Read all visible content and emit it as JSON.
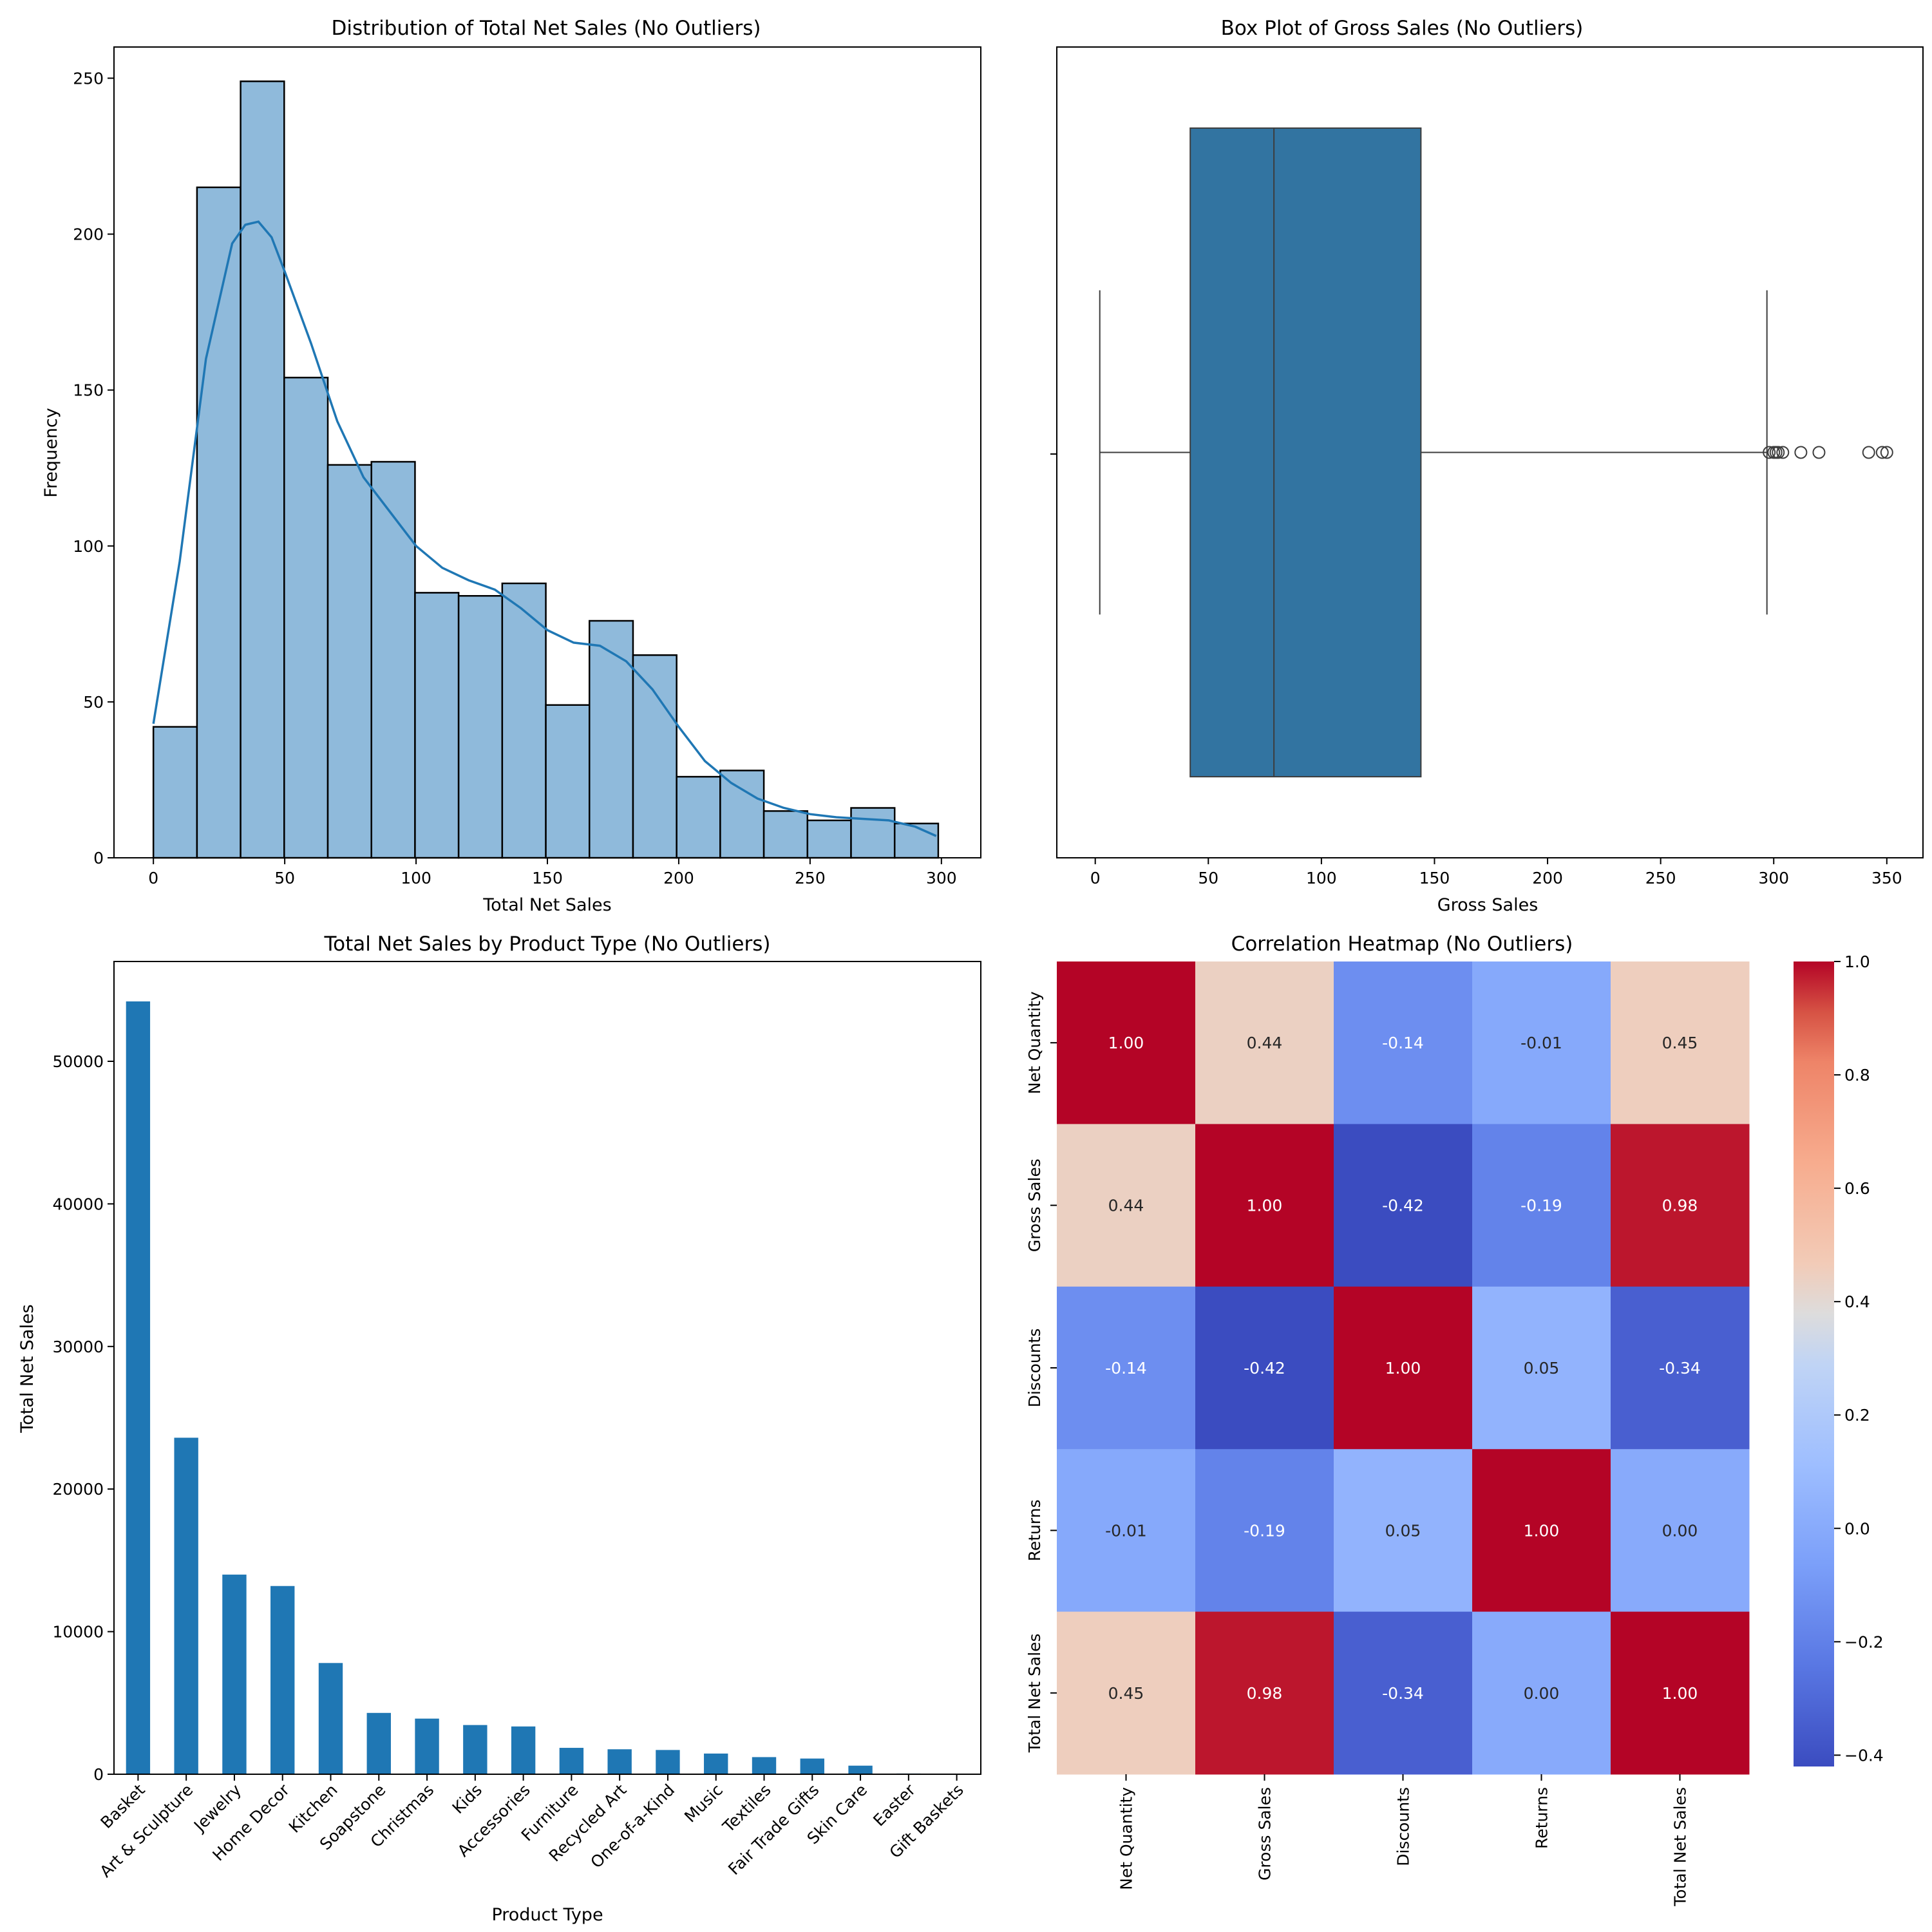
{
  "chart_data": [
    {
      "type": "bar",
      "id": "hist",
      "title": "Distribution of Total Net Sales (No Outliers)",
      "xlabel": "Total Net Sales",
      "ylabel": "Frequency",
      "xlim": [
        -15,
        315
      ],
      "ylim": [
        0,
        260
      ],
      "xticks": [
        0,
        50,
        100,
        150,
        200,
        250,
        300
      ],
      "yticks": [
        0,
        50,
        100,
        150,
        200,
        250
      ],
      "bin_width": 16.6,
      "bin_edges_start": 0,
      "values": [
        42,
        215,
        249,
        154,
        126,
        127,
        85,
        84,
        88,
        49,
        76,
        65,
        26,
        28,
        15,
        12,
        16,
        11
      ],
      "kde": {
        "x": [
          0,
          10,
          20,
          30,
          35,
          40,
          45,
          50,
          60,
          70,
          80,
          90,
          100,
          110,
          120,
          130,
          140,
          150,
          160,
          170,
          180,
          190,
          200,
          210,
          220,
          230,
          240,
          250,
          260,
          270,
          280,
          290,
          298
        ],
        "y": [
          43,
          95,
          160,
          197,
          203,
          204,
          199,
          188,
          165,
          140,
          122,
          111,
          100,
          93,
          89,
          86,
          80,
          73,
          69,
          68,
          63,
          54,
          42,
          31,
          24,
          19,
          16,
          14,
          13,
          12.5,
          12,
          10,
          7
        ]
      },
      "bar_color": "#8fbadb",
      "line_color": "#1f77b4"
    },
    {
      "type": "box",
      "id": "box",
      "title": "Box Plot of Gross Sales (No Outliers)",
      "xlabel": "Gross Sales",
      "xlim": [
        -17,
        366
      ],
      "xticks": [
        0,
        50,
        100,
        150,
        200,
        250,
        300,
        350
      ],
      "whisker_low": 2,
      "q1": 42,
      "median": 79,
      "q3": 144,
      "whisker_high": 297,
      "fliers": [
        298,
        300,
        301,
        302,
        304,
        312,
        320,
        342,
        348,
        350
      ],
      "box_color": "#3274a1"
    },
    {
      "type": "bar",
      "id": "products",
      "title": "Total Net Sales by Product Type (No Outliers)",
      "xlabel": "Product Type",
      "ylabel": "Total Net Sales",
      "ylim": [
        0,
        57000
      ],
      "yticks": [
        0,
        10000,
        20000,
        30000,
        40000,
        50000
      ],
      "categories": [
        "Basket",
        "Art & Sculpture",
        "Jewelry",
        "Home Decor",
        "Kitchen",
        "Soapstone",
        "Christmas",
        "Kids",
        "Accessories",
        "Furniture",
        "Recycled Art",
        "One-of-a-Kind",
        "Music",
        "Textiles",
        "Fair Trade Gifts",
        "Skin Care",
        "Easter",
        "Gift Baskets"
      ],
      "values": [
        54200,
        23600,
        14000,
        13200,
        7800,
        4300,
        3900,
        3450,
        3350,
        1850,
        1750,
        1700,
        1450,
        1200,
        1100,
        600,
        50,
        20
      ],
      "bar_color": "#1f77b4"
    },
    {
      "type": "heatmap",
      "id": "heatmap",
      "title": "Correlation Heatmap (No Outliers)",
      "labels": [
        "Net Quantity",
        "Gross Sales",
        "Discounts",
        "Returns",
        "Total Net Sales"
      ],
      "matrix": [
        [
          1.0,
          0.44,
          -0.14,
          -0.01,
          0.45
        ],
        [
          0.44,
          1.0,
          -0.42,
          -0.19,
          0.98
        ],
        [
          -0.14,
          -0.42,
          1.0,
          0.05,
          -0.34
        ],
        [
          -0.01,
          -0.19,
          0.05,
          1.0,
          0.0
        ],
        [
          0.45,
          0.98,
          -0.34,
          0.0,
          1.0
        ]
      ],
      "cell_text": [
        [
          "1.00",
          "0.44",
          "-0.14",
          "-0.01",
          "0.45"
        ],
        [
          "0.44",
          "1.00",
          "-0.42",
          "-0.19",
          "0.98"
        ],
        [
          "-0.14",
          "-0.42",
          "1.00",
          "0.05",
          "-0.34"
        ],
        [
          "-0.01",
          "-0.19",
          "0.05",
          "1.00",
          "0.00"
        ],
        [
          "0.45",
          "0.98",
          "-0.34",
          "0.00",
          "1.00"
        ]
      ],
      "vmin": -0.42,
      "vmax": 1.0,
      "colormap": "coolwarm",
      "colorbar_ticks": [
        1.0,
        0.8,
        0.6,
        0.4,
        0.2,
        0.0,
        -0.2,
        -0.4
      ],
      "colorbar_tick_labels": [
        "1.0",
        "0.8",
        "0.6",
        "0.4",
        "0.2",
        "0.0",
        "−0.2",
        "−0.4"
      ]
    }
  ]
}
